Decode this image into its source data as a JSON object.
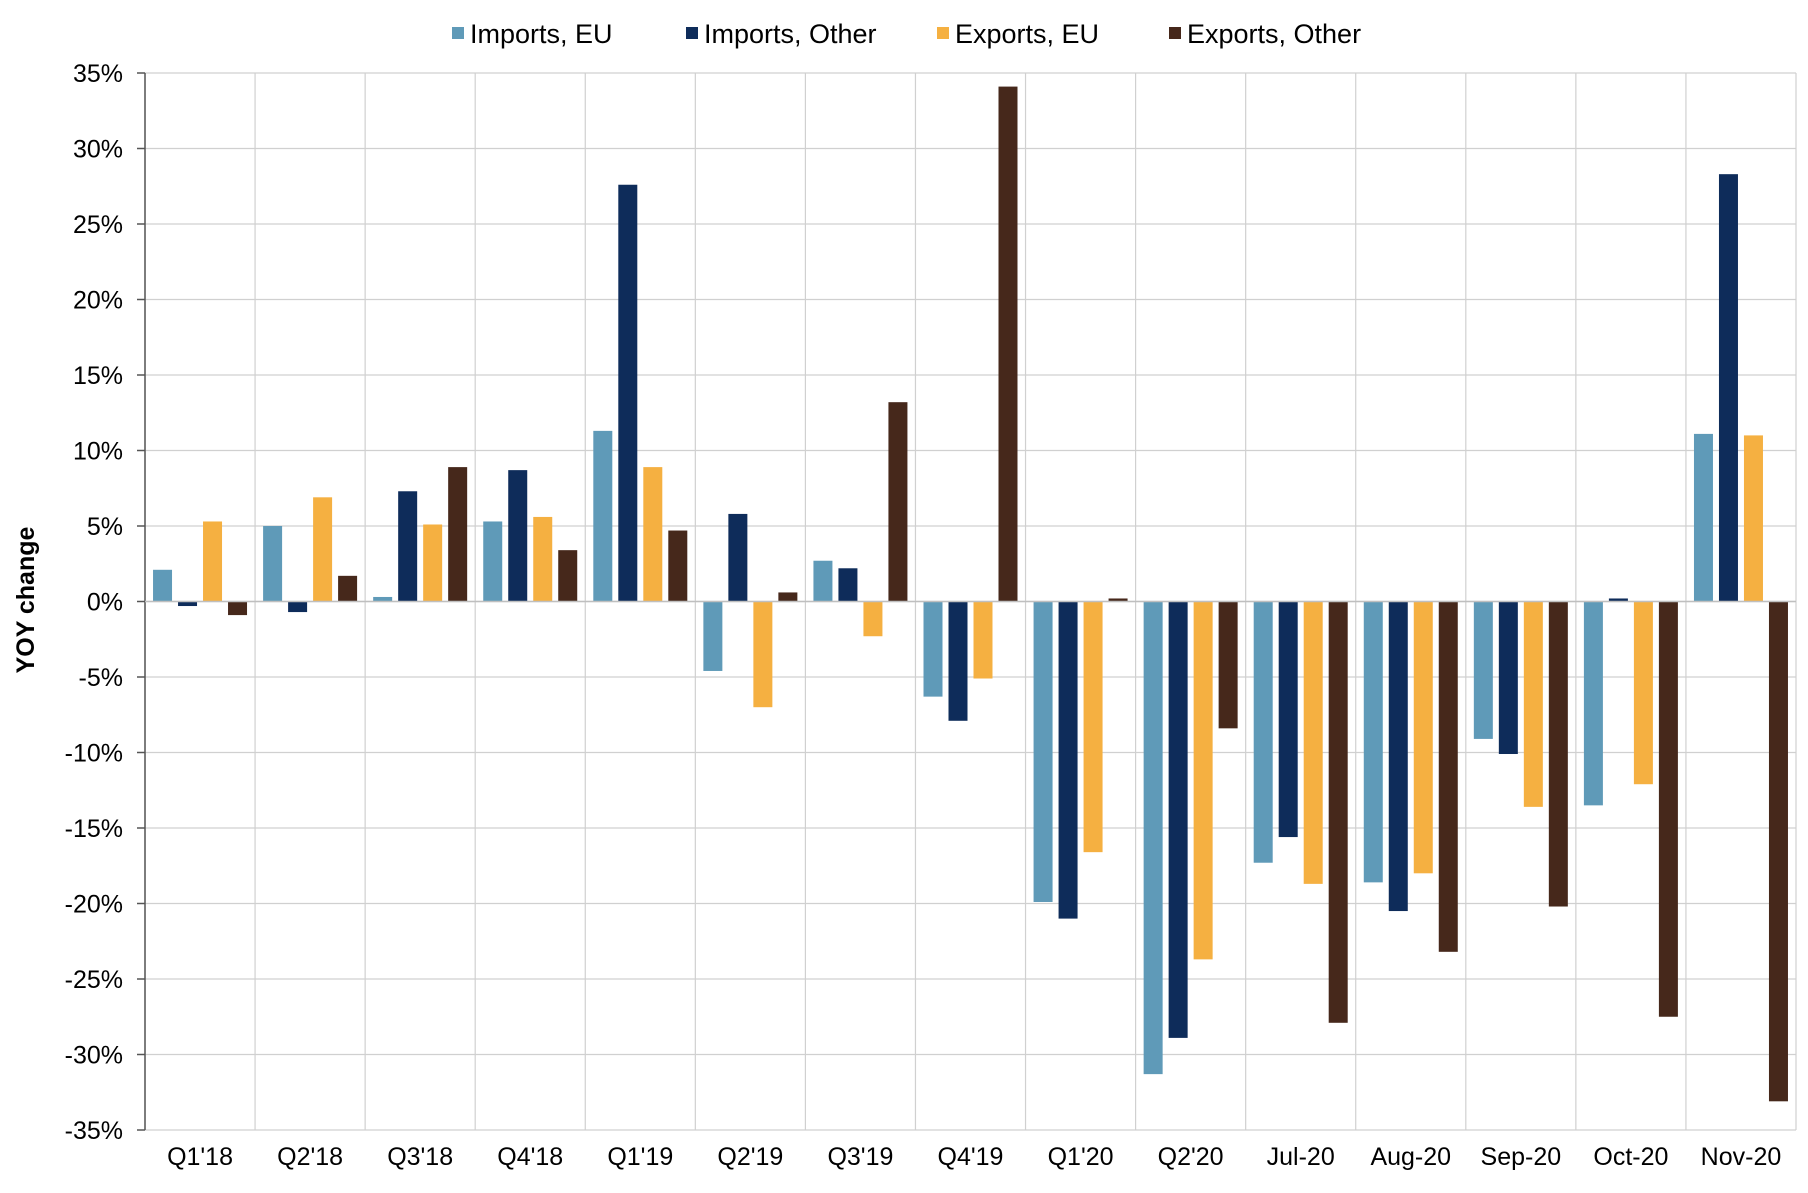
{
  "chart_data": {
    "type": "bar",
    "title": "",
    "xlabel": "",
    "ylabel": "YOY change",
    "ylim": [
      -35,
      35
    ],
    "y_step": 5,
    "y_tick_format": "percent",
    "grid": true,
    "legend_position": "top-center",
    "categories": [
      "Q1'18",
      "Q2'18",
      "Q3'18",
      "Q4'18",
      "Q1'19",
      "Q2'19",
      "Q3'19",
      "Q4'19",
      "Q1'20",
      "Q2'20",
      "Jul-20",
      "Aug-20",
      "Sep-20",
      "Oct-20",
      "Nov-20"
    ],
    "series": [
      {
        "name": "Imports, EU",
        "color": "#5f9ab8",
        "values": [
          2.1,
          5.0,
          0.3,
          5.3,
          11.3,
          -4.6,
          2.7,
          -6.3,
          -19.9,
          -31.3,
          -17.3,
          -18.6,
          -9.1,
          -13.5,
          11.1
        ]
      },
      {
        "name": "Imports, Other",
        "color": "#0e2c5a",
        "values": [
          -0.3,
          -0.7,
          7.3,
          8.7,
          27.6,
          5.8,
          2.2,
          -7.9,
          -21.0,
          -28.9,
          -15.6,
          -20.5,
          -10.1,
          0.2,
          28.3
        ]
      },
      {
        "name": "Exports, EU",
        "color": "#f5b041",
        "values": [
          5.3,
          6.9,
          5.1,
          5.6,
          8.9,
          -7.0,
          -2.3,
          -5.1,
          -16.6,
          -23.7,
          -18.7,
          -18.0,
          -13.6,
          -12.1,
          11.0
        ]
      },
      {
        "name": "Exports, Other",
        "color": "#46281b",
        "values": [
          -0.9,
          1.7,
          8.9,
          3.4,
          4.7,
          0.6,
          13.2,
          34.1,
          0.2,
          -8.4,
          -27.9,
          -23.2,
          -20.2,
          -27.5,
          -33.1
        ]
      }
    ]
  }
}
